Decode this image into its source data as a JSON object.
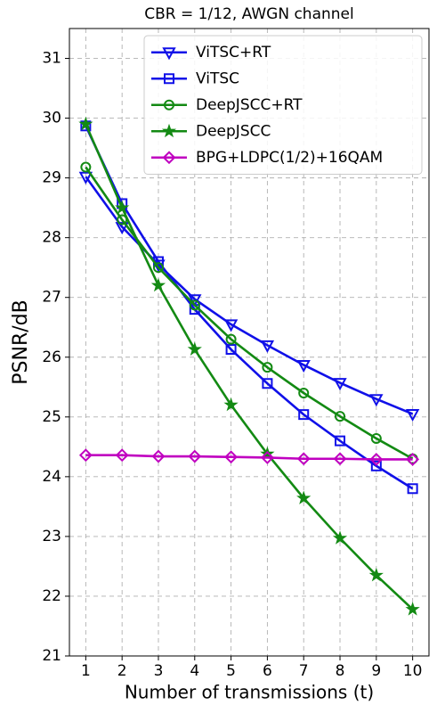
{
  "chart_data": {
    "type": "line",
    "title": "CBR = 1/12, AWGN channel",
    "x_label": "Number of transmissions (t)",
    "y_label": "PSNR/dB",
    "x": [
      1,
      2,
      3,
      4,
      5,
      6,
      7,
      8,
      9,
      10
    ],
    "xlim": [
      0.55,
      10.45
    ],
    "xticks": [
      1,
      2,
      3,
      4,
      5,
      6,
      7,
      8,
      9,
      10
    ],
    "ylim": [
      21,
      31.5
    ],
    "yticks": [
      21,
      22,
      23,
      24,
      25,
      26,
      27,
      28,
      29,
      30,
      31
    ],
    "grid": true,
    "legend": "upper right",
    "series": [
      {
        "name": "ViTSC+RT",
        "color": "#1010e8",
        "marker": "triangle-down",
        "values": [
          29.02,
          28.18,
          27.55,
          26.97,
          26.55,
          26.2,
          25.87,
          25.57,
          25.3,
          25.05
        ]
      },
      {
        "name": "ViTSC",
        "color": "#1010e8",
        "marker": "square",
        "values": [
          29.87,
          28.57,
          27.6,
          26.8,
          26.13,
          25.56,
          25.04,
          24.6,
          24.18,
          23.8
        ]
      },
      {
        "name": "DeepJSCC+RT",
        "color": "#138a13",
        "marker": "circle",
        "values": [
          29.18,
          28.3,
          27.5,
          26.87,
          26.3,
          25.83,
          25.4,
          25.01,
          24.64,
          24.3
        ]
      },
      {
        "name": "DeepJSCC",
        "color": "#138a13",
        "marker": "star",
        "values": [
          29.9,
          28.5,
          27.2,
          26.13,
          25.2,
          24.38,
          23.64,
          22.97,
          22.35,
          21.78
        ]
      },
      {
        "name": "BPG+LDPC(1/2)+16QAM",
        "color": "#c000c0",
        "marker": "diamond",
        "values": [
          24.36,
          24.36,
          24.34,
          24.34,
          24.33,
          24.32,
          24.3,
          24.3,
          24.29,
          24.29
        ]
      }
    ]
  }
}
